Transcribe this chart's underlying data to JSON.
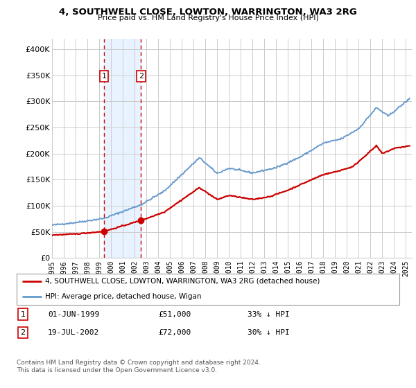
{
  "title": "4, SOUTHWELL CLOSE, LOWTON, WARRINGTON, WA3 2RG",
  "subtitle": "Price paid vs. HM Land Registry's House Price Index (HPI)",
  "legend_line1": "4, SOUTHWELL CLOSE, LOWTON, WARRINGTON, WA3 2RG (detached house)",
  "legend_line2": "HPI: Average price, detached house, Wigan",
  "footnote1": "Contains HM Land Registry data © Crown copyright and database right 2024.",
  "footnote2": "This data is licensed under the Open Government Licence v3.0.",
  "sale1_label": "1",
  "sale1_date": "01-JUN-1999",
  "sale1_price": "£51,000",
  "sale1_hpi": "33% ↓ HPI",
  "sale2_label": "2",
  "sale2_date": "19-JUL-2002",
  "sale2_price": "£72,000",
  "sale2_hpi": "30% ↓ HPI",
  "sale1_x": 1999.42,
  "sale1_y": 51000,
  "sale2_x": 2002.54,
  "sale2_y": 72000,
  "hpi_color": "#6699cc",
  "price_color": "#cc0000",
  "marker_color": "#cc0000",
  "vline_color": "#cc0000",
  "shade_color": "#ddeeff",
  "background_color": "#ffffff",
  "grid_color": "#cccccc",
  "ylim": [
    0,
    420000
  ],
  "xlim_start": 1995.0,
  "xlim_end": 2025.5,
  "yticks": [
    0,
    50000,
    100000,
    150000,
    200000,
    250000,
    300000,
    350000,
    400000
  ],
  "ytick_labels": [
    "£0",
    "£50K",
    "£100K",
    "£150K",
    "£200K",
    "£250K",
    "£300K",
    "£350K",
    "£400K"
  ],
  "xtick_years": [
    1995,
    1996,
    1997,
    1998,
    1999,
    2000,
    2001,
    2002,
    2003,
    2004,
    2005,
    2006,
    2007,
    2008,
    2009,
    2010,
    2011,
    2012,
    2013,
    2014,
    2015,
    2016,
    2017,
    2018,
    2019,
    2020,
    2021,
    2022,
    2023,
    2024,
    2025
  ],
  "hpi_anchors_x": [
    1995.0,
    1997.0,
    1999.42,
    2002.54,
    2004.5,
    2007.5,
    2009.0,
    2010.0,
    2012.0,
    2014.0,
    2016.0,
    2018.0,
    2019.5,
    2021.0,
    2022.5,
    2023.5,
    2025.3
  ],
  "hpi_anchors_y": [
    63000,
    68000,
    76000,
    102000,
    128000,
    192000,
    162000,
    172000,
    163000,
    173000,
    193000,
    220000,
    228000,
    248000,
    288000,
    272000,
    305000
  ],
  "price_anchors_x": [
    1995.0,
    1997.0,
    1999.42,
    2002.54,
    2004.5,
    2007.5,
    2009.0,
    2010.0,
    2012.0,
    2013.5,
    2015.0,
    2016.5,
    2018.0,
    2019.0,
    2020.5,
    2021.5,
    2022.5,
    2023.0,
    2024.0,
    2025.3
  ],
  "price_anchors_y": [
    44000,
    46000,
    51000,
    72000,
    88000,
    135000,
    112000,
    120000,
    112000,
    118000,
    130000,
    145000,
    160000,
    165000,
    175000,
    195000,
    215000,
    200000,
    210000,
    215000
  ],
  "noise_seed": 42,
  "noise_hpi": 800,
  "noise_price": 500
}
